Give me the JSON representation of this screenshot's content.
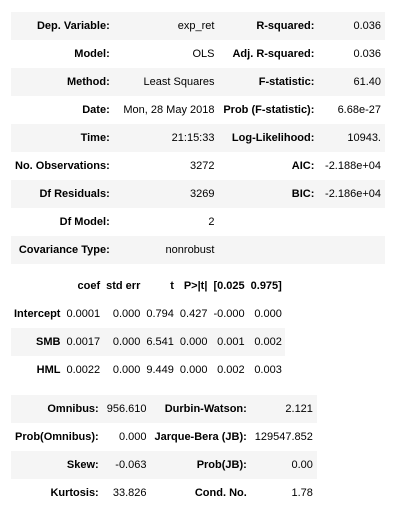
{
  "summary": {
    "rows": [
      {
        "k1": "Dep. Variable:",
        "v1": "exp_ret",
        "k2": "R-squared:",
        "v2": "0.036"
      },
      {
        "k1": "Model:",
        "v1": "OLS",
        "k2": "Adj. R-squared:",
        "v2": "0.036"
      },
      {
        "k1": "Method:",
        "v1": "Least Squares",
        "k2": "F-statistic:",
        "v2": "61.40"
      },
      {
        "k1": "Date:",
        "v1": "Mon, 28 May 2018",
        "k2": "Prob (F-statistic):",
        "v2": "6.68e-27"
      },
      {
        "k1": "Time:",
        "v1": "21:15:33",
        "k2": "Log-Likelihood:",
        "v2": "10943."
      },
      {
        "k1": "No. Observations:",
        "v1": "3272",
        "k2": "AIC:",
        "v2": "-2.188e+04"
      },
      {
        "k1": "Df Residuals:",
        "v1": "3269",
        "k2": "BIC:",
        "v2": "-2.186e+04"
      },
      {
        "k1": "Df Model:",
        "v1": "2",
        "k2": "",
        "v2": ""
      },
      {
        "k1": "Covariance Type:",
        "v1": "nonrobust",
        "k2": "",
        "v2": ""
      }
    ]
  },
  "coef": {
    "headers": [
      "",
      "coef",
      "std err",
      "t",
      "P>|t|",
      "[0.025",
      "0.975]"
    ],
    "rows": [
      {
        "name": "Intercept",
        "vals": [
          "0.0001",
          "0.000",
          "0.794",
          "0.427",
          "-0.000",
          "0.000"
        ]
      },
      {
        "name": "SMB",
        "vals": [
          "0.0017",
          "0.000",
          "6.541",
          "0.000",
          "0.001",
          "0.002"
        ]
      },
      {
        "name": "HML",
        "vals": [
          "0.0022",
          "0.000",
          "9.449",
          "0.000",
          "0.002",
          "0.003"
        ]
      }
    ]
  },
  "diag": {
    "rows": [
      {
        "k1": "Omnibus:",
        "v1": "956.610",
        "k2": "Durbin-Watson:",
        "v2": "2.121"
      },
      {
        "k1": "Prob(Omnibus):",
        "v1": "0.000",
        "k2": "Jarque-Bera (JB):",
        "v2": "129547.852"
      },
      {
        "k1": "Skew:",
        "v1": "-0.063",
        "k2": "Prob(JB):",
        "v2": "0.00"
      },
      {
        "k1": "Kurtosis:",
        "v1": "33.826",
        "k2": "Cond. No.",
        "v2": "1.78"
      }
    ]
  }
}
